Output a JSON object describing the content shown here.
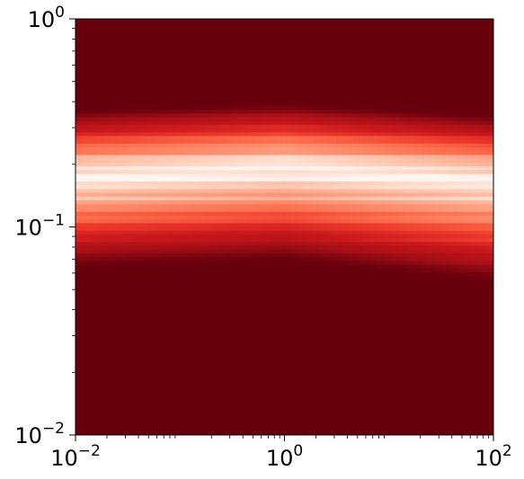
{
  "chart_data": {
    "type": "heatmap",
    "title": "",
    "xlabel": "",
    "ylabel": "",
    "x_scale": "log",
    "y_scale": "log",
    "xlim": [
      0.01,
      100
    ],
    "ylim": [
      0.01,
      1
    ],
    "grid": false,
    "colormap": "Reds",
    "colors": {
      "background_dark": "#67000d",
      "band_mid": "#e32f27",
      "band_light": "#fdd4c2",
      "band_peak": "#fff5f0"
    },
    "x_ticks": [
      {
        "value": 0.01,
        "base": "10",
        "exp": "−2"
      },
      {
        "value": 1,
        "base": "10",
        "exp": "0"
      },
      {
        "value": 100,
        "base": "10",
        "exp": "2"
      }
    ],
    "y_ticks": [
      {
        "value": 0.01,
        "base": "10",
        "exp": "−2"
      },
      {
        "value": 0.1,
        "base": "10",
        "exp": "−1"
      },
      {
        "value": 1,
        "base": "10",
        "exp": "0"
      }
    ],
    "band": {
      "y_center_at_xmin": 0.175,
      "y_center_at_xmid": 0.19,
      "y_center_at_xmax": 0.17,
      "y_lower_at_xmin": 0.065,
      "y_lower_at_xmid": 0.07,
      "y_lower_at_xmax": 0.055,
      "y_upper_at_xmin": 0.36,
      "y_upper_at_xmid": 0.39,
      "y_upper_at_xmax": 0.34
    }
  }
}
